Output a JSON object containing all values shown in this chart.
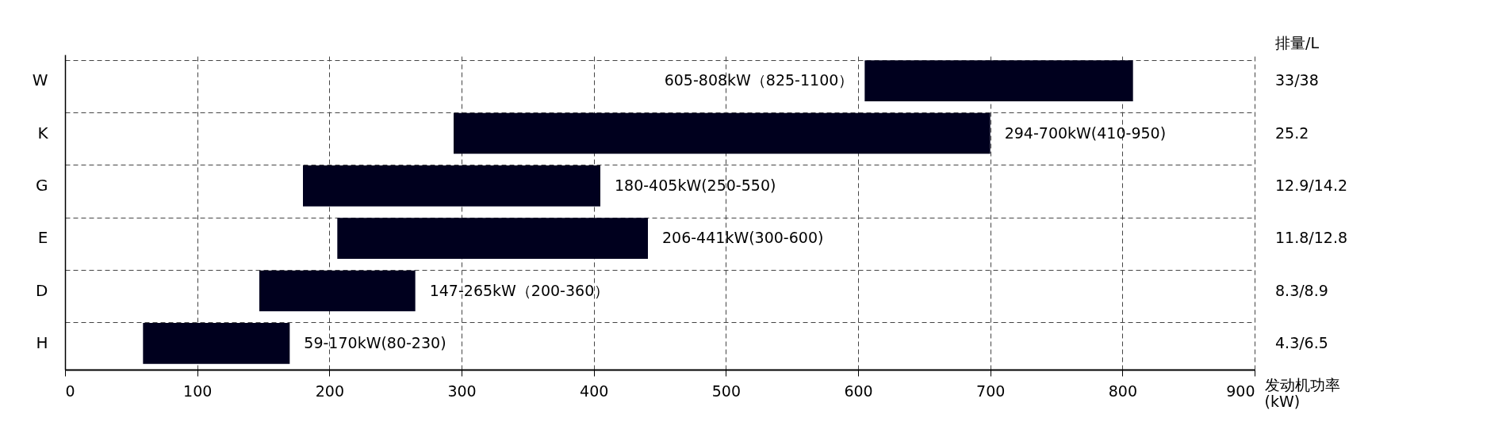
{
  "chart_data": {
    "type": "bar",
    "orientation": "horizontal",
    "xlabel": "发动机功率\n(kW)",
    "y2label": "排量/L",
    "categories": [
      "W",
      "K",
      "G",
      "E",
      "D",
      "H"
    ],
    "base": [
      605,
      294,
      180,
      206,
      147,
      59
    ],
    "values": [
      203,
      406,
      225,
      235,
      118,
      111
    ],
    "value_labels": [
      "605-808kW（825-1100）",
      "294-700kW(410-950)",
      "180-405kW(250-550)",
      "206-441kW(300-600)",
      "147-265kW（200-360）",
      "59-170kW(80-230)"
    ],
    "color": "#00001e",
    "xlim": [
      0,
      900
    ],
    "xticks": [
      0,
      100,
      200,
      300,
      400,
      500,
      600,
      700,
      800,
      900
    ],
    "grid": true,
    "annotations": [
      "33/38",
      "25.2",
      "12.9/14.2",
      "11.8/12.8",
      "8.3/8.9",
      "4.3/6.5"
    ]
  }
}
